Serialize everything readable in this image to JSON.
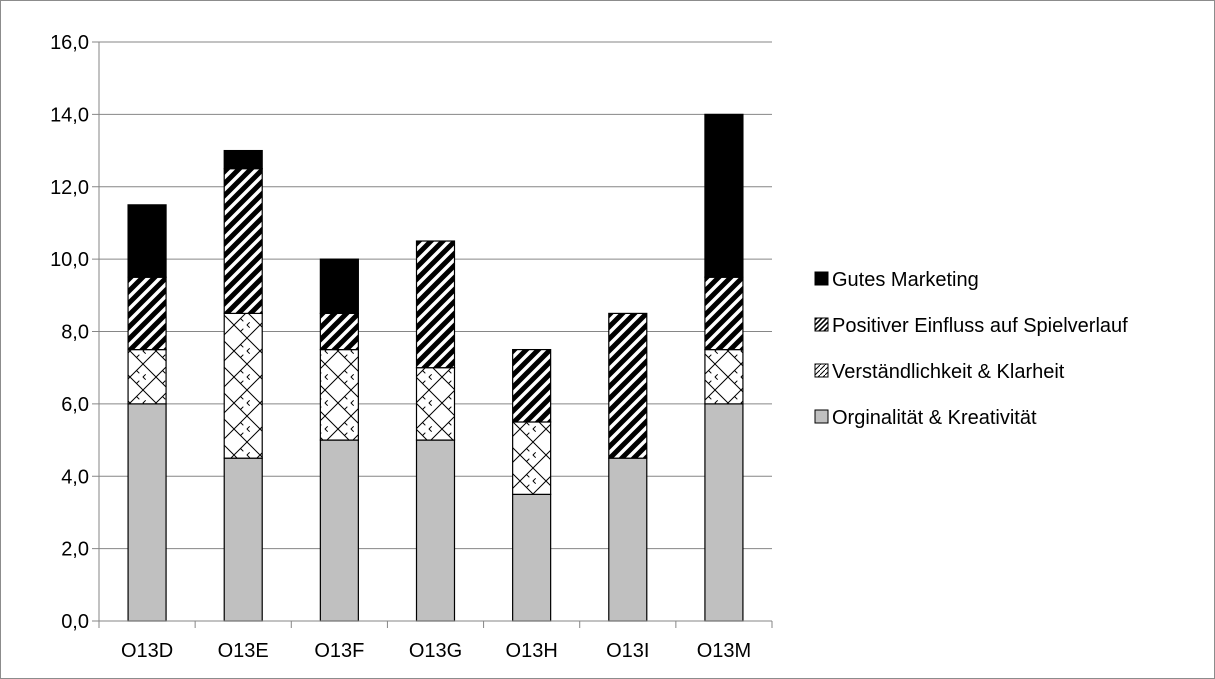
{
  "chart_data": {
    "type": "bar",
    "stacked": true,
    "title": "",
    "xlabel": "",
    "ylabel": "",
    "ylim": [
      0,
      16
    ],
    "ytick_step": 2,
    "ytick_labels": [
      "0,0",
      "2,0",
      "4,0",
      "6,0",
      "8,0",
      "10,0",
      "12,0",
      "14,0",
      "16,0"
    ],
    "grid": true,
    "legend_position": "right",
    "categories": [
      "O13D",
      "O13E",
      "O13F",
      "O13G",
      "O13H",
      "O13I",
      "O13M"
    ],
    "series": [
      {
        "name": "Orginalität & Kreativität",
        "pattern": "solid-gray",
        "color": "#c0c0c0",
        "values": [
          6.0,
          4.5,
          5.0,
          5.0,
          3.5,
          4.5,
          6.0
        ]
      },
      {
        "name": "Verständlichkeit & Klarheit",
        "pattern": "diamond-hatch",
        "color": "#ffffff",
        "values": [
          1.5,
          4.0,
          2.5,
          2.0,
          2.0,
          0.0,
          1.5
        ]
      },
      {
        "name": "Positiver Einfluss auf Spielverlauf",
        "pattern": "diagonal-stripes",
        "color": "#000000",
        "values": [
          2.0,
          4.0,
          1.0,
          3.5,
          2.0,
          4.0,
          2.0
        ]
      },
      {
        "name": "Gutes Marketing",
        "pattern": "solid-black",
        "color": "#000000",
        "values": [
          2.0,
          0.5,
          1.5,
          0.0,
          0.0,
          0.0,
          4.5
        ]
      }
    ],
    "legend_order": [
      "Gutes Marketing",
      "Positiver Einfluss auf Spielverlauf",
      "Verständlichkeit & Klarheit",
      "Orginalität & Kreativität"
    ]
  }
}
